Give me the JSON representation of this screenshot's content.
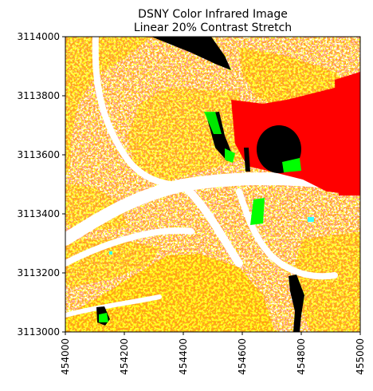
{
  "chart_data": {
    "type": "image",
    "title_lines": [
      "DSNY Color Infrared Image",
      "Linear 20% Contrast Stretch"
    ],
    "xlabel": "",
    "ylabel": "",
    "xlim": [
      454000,
      455000
    ],
    "ylim": [
      3113000,
      3114000
    ],
    "x_ticks": [
      454000,
      454200,
      454400,
      454600,
      454800,
      455000
    ],
    "y_ticks": [
      3113000,
      3113200,
      3113400,
      3113600,
      3113800,
      3114000
    ],
    "x_tick_labels": [
      "454000",
      "454200",
      "454400",
      "454600",
      "454800",
      "455000"
    ],
    "y_tick_labels": [
      "3113000",
      "3113200",
      "3113400",
      "3113600",
      "3113800",
      "3114000"
    ],
    "x_tick_rotation": "vertical",
    "grid": false,
    "colors": {
      "background": "#ffffff",
      "yellow": "#ffff00",
      "bright_red": "#ff0000",
      "water_black": "#000000",
      "vegetation_green": "#00ff00",
      "cyan_feature": "#33ffff"
    }
  }
}
